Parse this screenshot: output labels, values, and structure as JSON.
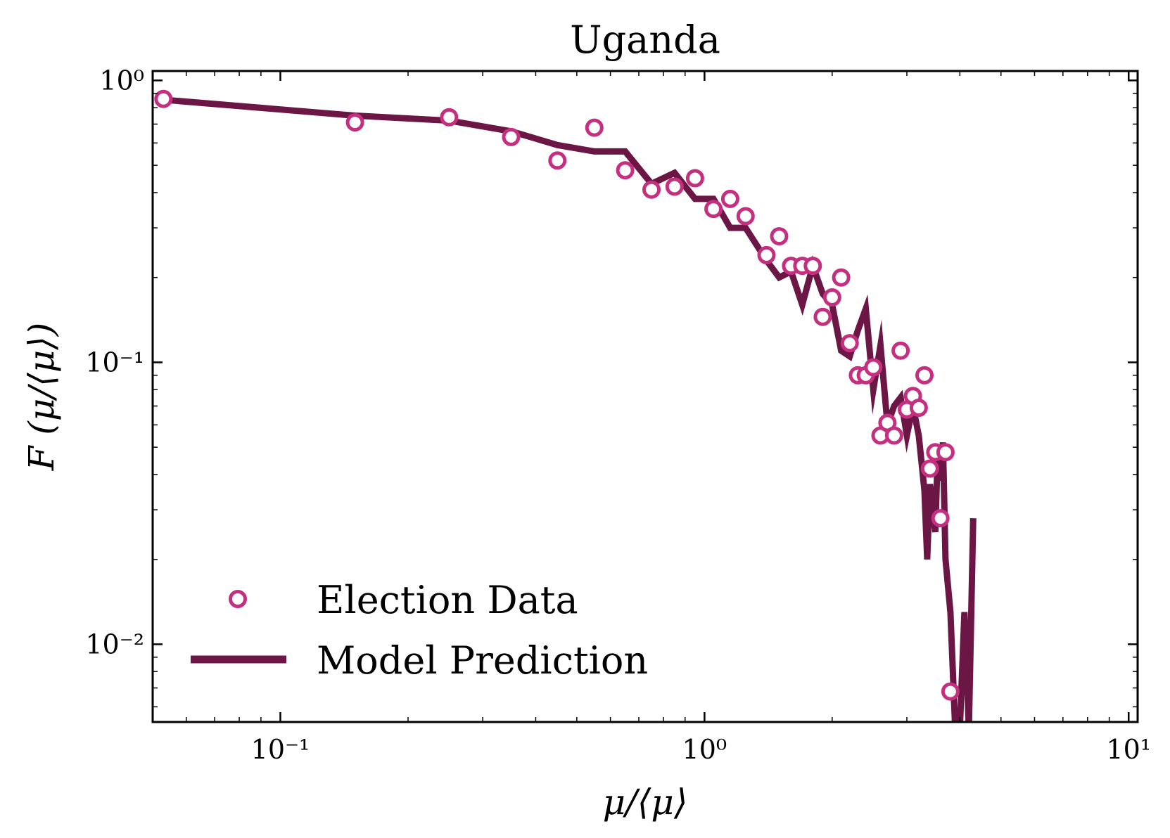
{
  "chart_data": {
    "type": "line",
    "title": "Uganda",
    "xlabel": "μ/⟨μ⟩",
    "ylabel": "F (μ/⟨μ⟩)",
    "xscale": "log",
    "yscale": "log",
    "xlim": [
      0.05,
      10.5
    ],
    "ylim": [
      0.0053,
      1.08
    ],
    "xticks": [
      {
        "value": 0.1,
        "label": "10⁻¹"
      },
      {
        "value": 1,
        "label": "10⁰"
      },
      {
        "value": 10,
        "label": "10¹"
      }
    ],
    "yticks": [
      {
        "value": 1,
        "label": "10⁰"
      },
      {
        "value": 0.1,
        "label": "10⁻¹"
      },
      {
        "value": 0.01,
        "label": "10⁻²"
      }
    ],
    "legend": {
      "position": "lower-left"
    },
    "colors": {
      "data": "#c4307f",
      "model": "#6b1645"
    },
    "series": [
      {
        "name": "Election Data",
        "kind": "scatter",
        "x": [
          0.053,
          0.15,
          0.25,
          0.35,
          0.45,
          0.55,
          0.65,
          0.75,
          0.85,
          0.95,
          1.05,
          1.15,
          1.25,
          1.4,
          1.5,
          1.6,
          1.7,
          1.8,
          1.9,
          2.0,
          2.1,
          2.2,
          2.3,
          2.4,
          2.5,
          2.6,
          2.7,
          2.8,
          2.9,
          3.0,
          3.1,
          3.2,
          3.3,
          3.4,
          3.5,
          3.6,
          3.7,
          3.8
        ],
        "y": [
          0.86,
          0.71,
          0.74,
          0.63,
          0.52,
          0.68,
          0.48,
          0.41,
          0.42,
          0.45,
          0.35,
          0.38,
          0.33,
          0.24,
          0.28,
          0.22,
          0.22,
          0.22,
          0.145,
          0.17,
          0.2,
          0.117,
          0.09,
          0.09,
          0.096,
          0.055,
          0.061,
          0.055,
          0.11,
          0.068,
          0.076,
          0.069,
          0.09,
          0.042,
          0.048,
          0.028,
          0.048,
          0.0068
        ]
      },
      {
        "name": "Model Prediction",
        "kind": "line",
        "x": [
          0.055,
          0.15,
          0.25,
          0.35,
          0.45,
          0.55,
          0.65,
          0.75,
          0.85,
          0.95,
          1.05,
          1.15,
          1.25,
          1.4,
          1.5,
          1.6,
          1.7,
          1.8,
          1.9,
          2.0,
          2.1,
          2.2,
          2.3,
          2.4,
          2.5,
          2.6,
          2.7,
          2.8,
          2.9,
          3.0,
          3.1,
          3.2,
          3.3,
          3.35,
          3.4,
          3.5,
          3.55,
          3.6,
          3.65,
          3.7,
          3.8,
          3.9,
          4.0,
          4.1,
          4.2,
          4.3
        ],
        "y": [
          0.85,
          0.75,
          0.72,
          0.66,
          0.59,
          0.56,
          0.56,
          0.43,
          0.47,
          0.38,
          0.38,
          0.3,
          0.3,
          0.23,
          0.2,
          0.21,
          0.16,
          0.22,
          0.175,
          0.16,
          0.11,
          0.105,
          0.13,
          0.155,
          0.08,
          0.115,
          0.06,
          0.07,
          0.075,
          0.055,
          0.07,
          0.055,
          0.035,
          0.02,
          0.037,
          0.025,
          0.05,
          0.038,
          0.052,
          0.02,
          0.013,
          0.005,
          0.005,
          0.013,
          0.005,
          0.028
        ]
      }
    ]
  }
}
